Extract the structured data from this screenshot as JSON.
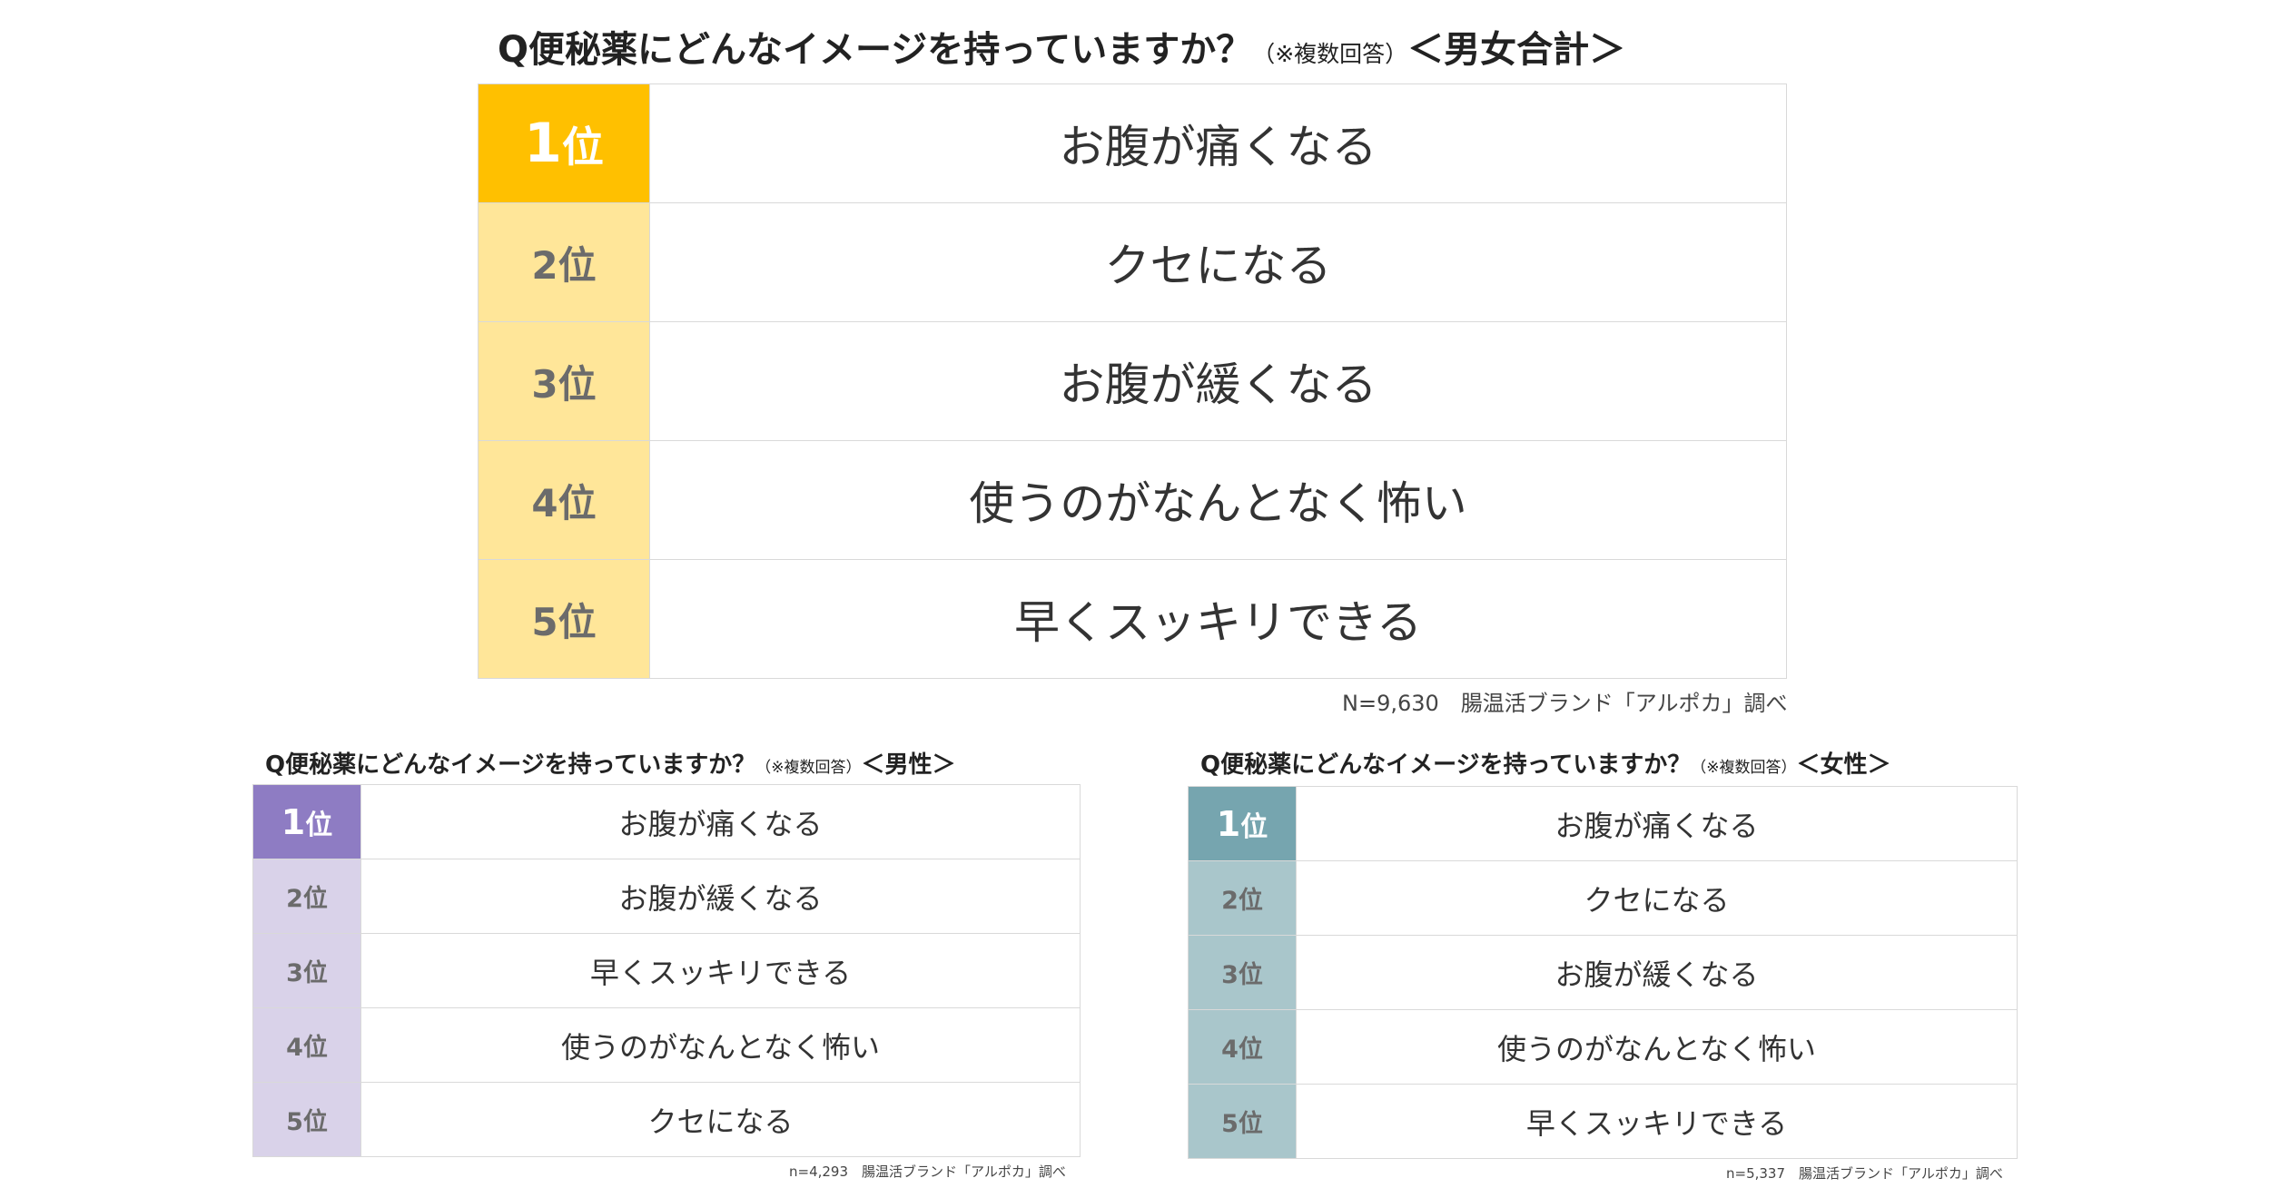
{
  "main": {
    "title_question": "Q便秘薬にどんなイメージを持っていますか？",
    "title_note": "（※複数回答）",
    "title_group": "＜男女合計＞",
    "rows": [
      {
        "rank_num": "1",
        "rank_unit": "位",
        "answer": "お腹が痛くなる"
      },
      {
        "rank_num": "2",
        "rank_unit": "位",
        "answer": "クセになる"
      },
      {
        "rank_num": "3",
        "rank_unit": "位",
        "answer": "お腹が緩くなる"
      },
      {
        "rank_num": "4",
        "rank_unit": "位",
        "answer": "使うのがなんとなく怖い"
      },
      {
        "rank_num": "5",
        "rank_unit": "位",
        "answer": "早くスッキリできる"
      }
    ],
    "source": "N=9,630　腸温活ブランド「アルポカ」調べ",
    "colors": {
      "rank1": "#ffc000",
      "rank_rest": "#ffe699"
    }
  },
  "male": {
    "title_question": "Q便秘薬にどんなイメージを持っていますか？",
    "title_note": "（※複数回答）",
    "title_group": "＜男性＞",
    "rows": [
      {
        "rank_num": "1",
        "rank_unit": "位",
        "answer": "お腹が痛くなる"
      },
      {
        "rank_num": "2",
        "rank_unit": "位",
        "answer": "お腹が緩くなる"
      },
      {
        "rank_num": "3",
        "rank_unit": "位",
        "answer": "早くスッキリできる"
      },
      {
        "rank_num": "4",
        "rank_unit": "位",
        "answer": "使うのがなんとなく怖い"
      },
      {
        "rank_num": "5",
        "rank_unit": "位",
        "answer": "クセになる"
      }
    ],
    "source": "n=4,293　腸温活ブランド「アルポカ」調べ",
    "colors": {
      "rank1": "#8e7cc3",
      "rank_rest": "#d9d2e9"
    }
  },
  "female": {
    "title_question": "Q便秘薬にどんなイメージを持っていますか？",
    "title_note": "（※複数回答）",
    "title_group": "＜女性＞",
    "rows": [
      {
        "rank_num": "1",
        "rank_unit": "位",
        "answer": "お腹が痛くなる"
      },
      {
        "rank_num": "2",
        "rank_unit": "位",
        "answer": "クセになる"
      },
      {
        "rank_num": "3",
        "rank_unit": "位",
        "answer": "お腹が緩くなる"
      },
      {
        "rank_num": "4",
        "rank_unit": "位",
        "answer": "使うのがなんとなく怖い"
      },
      {
        "rank_num": "5",
        "rank_unit": "位",
        "answer": "早くスッキリできる"
      }
    ],
    "source": "n=5,337　腸温活ブランド「アルポカ」調べ",
    "colors": {
      "rank1": "#76a5af",
      "rank_rest": "#a9c6cb"
    }
  }
}
